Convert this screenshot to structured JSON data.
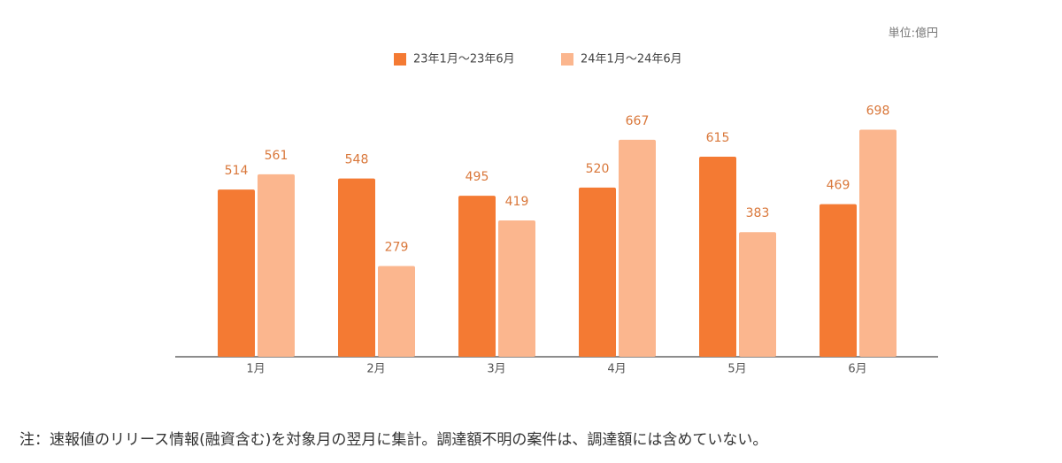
{
  "chart_data": {
    "type": "bar",
    "unit": "単位:億円",
    "categories": [
      "1月",
      "2月",
      "3月",
      "4月",
      "5月",
      "6月"
    ],
    "series": [
      {
        "name": "23年1月～23年6月",
        "color": "#f47a33",
        "values": [
          514,
          548,
          495,
          520,
          615,
          469
        ]
      },
      {
        "name": "24年1月～24年6月",
        "color": "#fbb68e",
        "values": [
          561,
          279,
          419,
          667,
          383,
          698
        ]
      }
    ],
    "ylim": [
      0,
      800
    ],
    "note": "注：速報値のリリース情報(融資含む)を対象月の翌月に集計。調達額不明の案件は、調達額には含めていない。"
  }
}
